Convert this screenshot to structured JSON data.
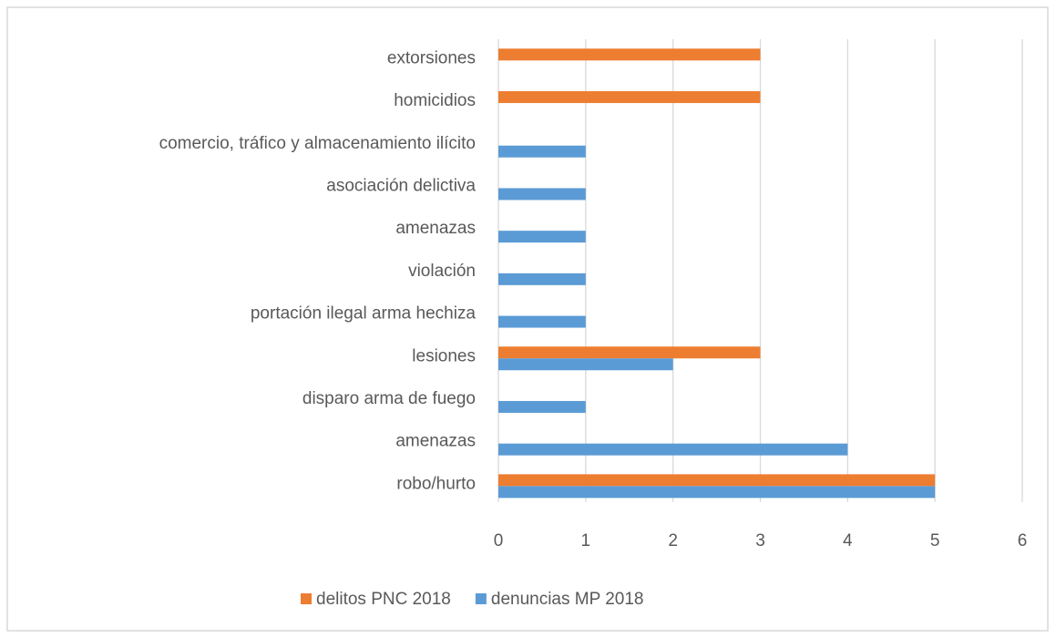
{
  "chart_data": {
    "type": "barh",
    "categories": [
      "robo/hurto",
      "amenazas",
      "disparo arma de fuego",
      "lesiones",
      "portación ilegal arma hechiza",
      "violación",
      "amenazas",
      "asociación delictiva",
      "comercio, tráfico y almacenamiento ilícito",
      "homicidios",
      "extorsiones"
    ],
    "series": [
      {
        "name": "delitos PNC 2018",
        "color": "#ed7d31",
        "values": [
          5,
          null,
          null,
          3,
          null,
          null,
          null,
          null,
          null,
          3,
          3
        ]
      },
      {
        "name": "denuncias MP 2018",
        "color": "#5b9bd5",
        "values": [
          5,
          4,
          1,
          2,
          1,
          1,
          1,
          1,
          1,
          null,
          null
        ]
      }
    ],
    "xlim": [
      0,
      6
    ],
    "xticks": [
      0,
      1,
      2,
      3,
      4,
      5,
      6
    ],
    "grid": true,
    "legend": "bottom"
  }
}
